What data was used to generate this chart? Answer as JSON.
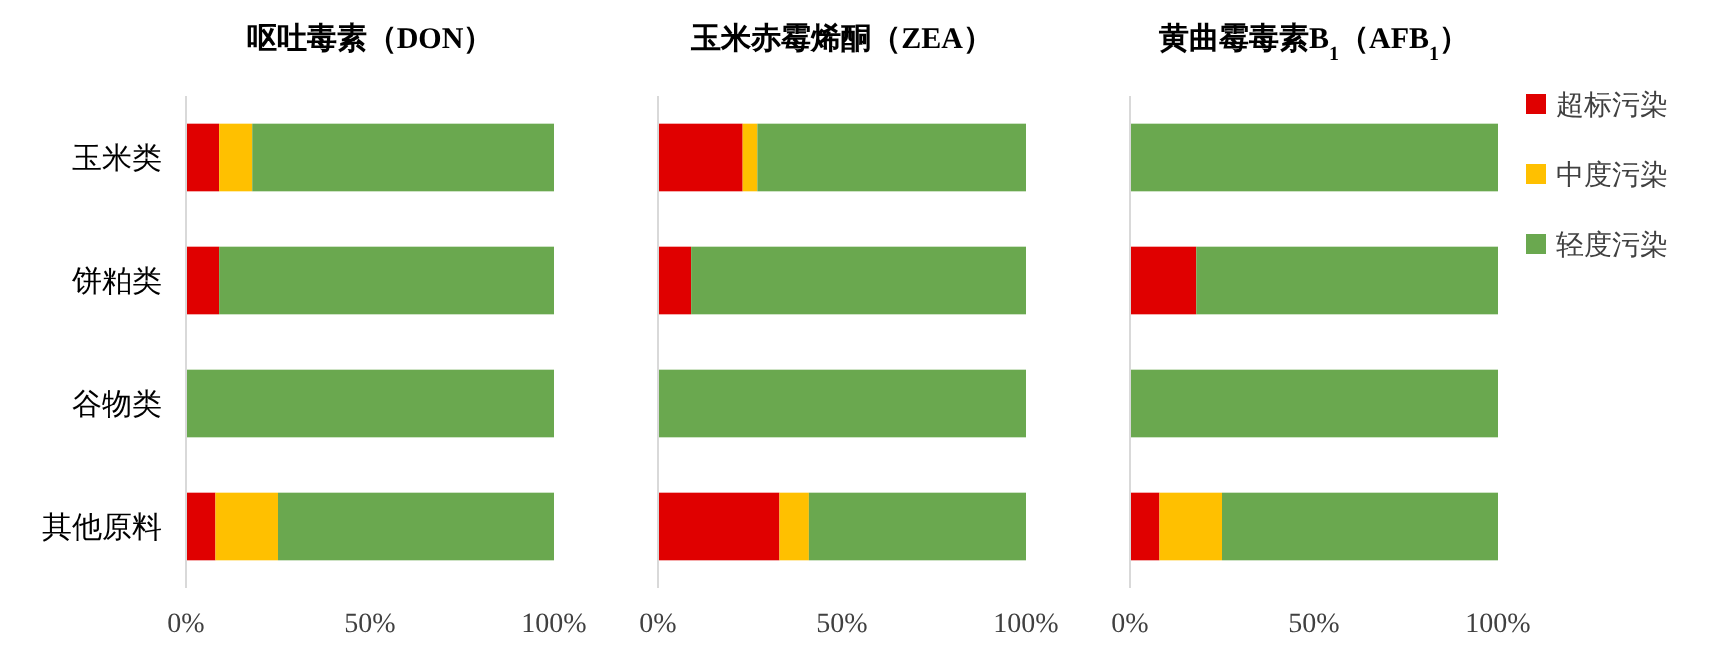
{
  "chart_data": [
    {
      "type": "bar",
      "orientation": "horizontal",
      "stacked": true,
      "title": "呕吐毒素（DON）",
      "categories": [
        "玉米类",
        "饼粕类",
        "谷物类",
        "其他原料"
      ],
      "xlim": [
        0,
        100
      ],
      "xticks": [
        {
          "value": 0,
          "label": "0%"
        },
        {
          "value": 50,
          "label": "50%"
        },
        {
          "value": 100,
          "label": "100%"
        }
      ],
      "legend": false,
      "series": [
        {
          "color": "#e00000",
          "values": [
            9,
            9,
            0,
            8
          ]
        },
        {
          "color": "#ffc000",
          "values": [
            9,
            0,
            0,
            17
          ]
        },
        {
          "color": "#6aa84f",
          "values": [
            82,
            91,
            100,
            75
          ]
        }
      ]
    },
    {
      "type": "bar",
      "orientation": "horizontal",
      "stacked": true,
      "title": "玉米赤霉烯酮（ZEA）",
      "categories": [
        null,
        null,
        null,
        null
      ],
      "xlim": [
        0,
        100
      ],
      "xticks": [
        {
          "value": 0,
          "label": "0%"
        },
        {
          "value": 50,
          "label": "50%"
        },
        {
          "value": 100,
          "label": "100%"
        }
      ],
      "legend": false,
      "series": [
        {
          "color": "#e00000",
          "values": [
            23,
            9,
            0,
            33
          ]
        },
        {
          "color": "#ffc000",
          "values": [
            4,
            0,
            0,
            8
          ]
        },
        {
          "color": "#6aa84f",
          "values": [
            73,
            91,
            100,
            59
          ]
        }
      ]
    },
    {
      "type": "bar",
      "orientation": "horizontal",
      "stacked": true,
      "title": "黄曲霉毒素B$_{1}$（AFB$_{1}$）",
      "categories": [
        null,
        null,
        null,
        null
      ],
      "xlim": [
        0,
        100
      ],
      "xticks": [
        {
          "value": 0,
          "label": "0%"
        },
        {
          "value": 50,
          "label": "50%"
        },
        {
          "value": 100,
          "label": "100%"
        }
      ],
      "legend": "right",
      "series": [
        {
          "name": "超标污染",
          "color": "#e00000",
          "values": [
            0,
            18,
            0,
            8
          ]
        },
        {
          "name": "中度污染",
          "color": "#ffc000",
          "values": [
            0,
            0,
            0,
            17
          ]
        },
        {
          "name": "轻度污染",
          "color": "#6aa84f",
          "values": [
            100,
            82,
            100,
            75
          ]
        }
      ]
    }
  ]
}
